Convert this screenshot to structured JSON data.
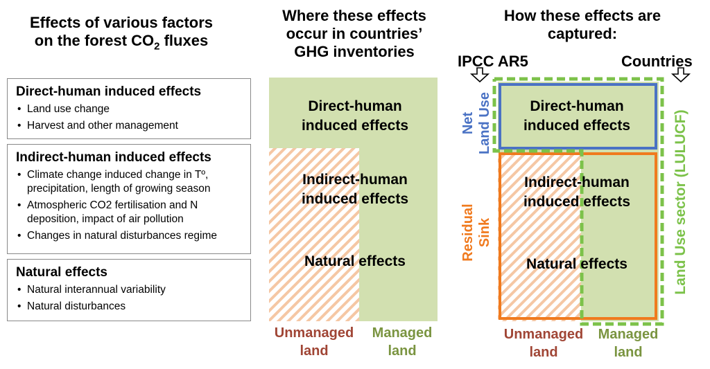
{
  "left": {
    "title_line1": "Effects of various factors",
    "title_line2_pre": "on the forest CO",
    "title_line2_sub": "2",
    "title_line2_post": " fluxes",
    "boxes": [
      {
        "title": "Direct-human induced effects",
        "items": [
          "Land use change",
          "Harvest and other management"
        ]
      },
      {
        "title": "Indirect-human induced effects",
        "items": [
          "Climate change induced change in Tº, precipitation, length of growing season",
          "Atmospheric CO2 fertilisation and N deposition, impact of air pollution",
          "Changes in natural disturbances regime"
        ]
      },
      {
        "title": "Natural effects",
        "items": [
          "Natural interannual variability",
          "Natural disturbances"
        ]
      }
    ]
  },
  "middle": {
    "title_line1": "Where these effects",
    "title_line2": "occur in countries’",
    "title_line3": "GHG inventories",
    "direct_line1": "Direct-human",
    "direct_line2": "induced effects",
    "indirect_line1": "Indirect-human",
    "indirect_line2": "induced effects",
    "natural": "Natural effects",
    "unmanaged_line1": "Unmanaged",
    "unmanaged_line2": "land",
    "managed_line1": "Managed",
    "managed_line2": "land"
  },
  "right": {
    "title_line1": "How these effects are",
    "title_line2": "captured:",
    "ipcc": "IPCC AR5",
    "countries": "Countries",
    "net_land_use_line1": "Net",
    "net_land_use_line2": "Land Use",
    "residual_line1": "Residual",
    "residual_line2": "Sink",
    "lulucf": "Land Use sector  (LULUCF)",
    "direct_line1": "Direct-human",
    "direct_line2": "induced effects",
    "indirect_line1": "Indirect-human",
    "indirect_line2": "induced effects",
    "natural": "Natural effects",
    "unmanaged_line1": "Unmanaged",
    "unmanaged_line2": "land",
    "managed_line1": "Managed",
    "managed_line2": "land"
  },
  "colors": {
    "green_fill": "#d2e0b0",
    "hatch": "#f5c7a4",
    "unmanaged_text": "#a04535",
    "managed_text": "#7a9440",
    "blue": "#4a72c4",
    "orange": "#f07a1e",
    "dashed_green": "#7cc24a"
  }
}
